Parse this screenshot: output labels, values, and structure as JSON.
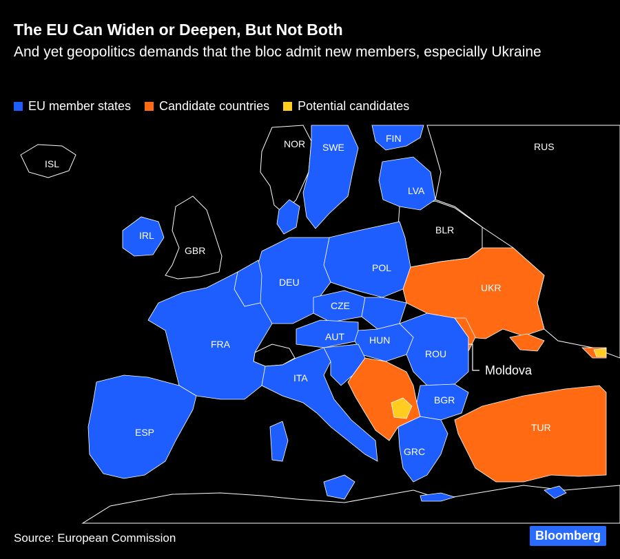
{
  "title": "The EU Can Widen or Deepen, But Not Both",
  "subtitle": "And yet geopolitics demands that the bloc admit new members, especially Ukraine",
  "legend": [
    {
      "label": "EU member states",
      "color": "#1e5eff"
    },
    {
      "label": "Candidate countries",
      "color": "#ff6a13"
    },
    {
      "label": "Potential candidates",
      "color": "#ffcc1f"
    }
  ],
  "colors": {
    "member": "#1e5eff",
    "candidate": "#ff6a13",
    "potential": "#ffcc1f",
    "nonmember": "#000000",
    "border": "#ffffff"
  },
  "labels": {
    "ISL": "ISL",
    "NOR": "NOR",
    "SWE": "SWE",
    "FIN": "FIN",
    "RUS": "RUS",
    "LVA": "LVA",
    "IRL": "IRL",
    "GBR": "GBR",
    "BLR": "BLR",
    "POL": "POL",
    "DEU": "DEU",
    "UKR": "UKR",
    "CZE": "CZE",
    "FRA": "FRA",
    "AUT": "AUT",
    "HUN": "HUN",
    "ROU": "ROU",
    "ITA": "ITA",
    "BGR": "BGR",
    "ESP": "ESP",
    "TUR": "TUR",
    "GRC": "GRC",
    "Moldova": "Moldova"
  },
  "source": "Source: European Commission",
  "brand": "Bloomberg"
}
